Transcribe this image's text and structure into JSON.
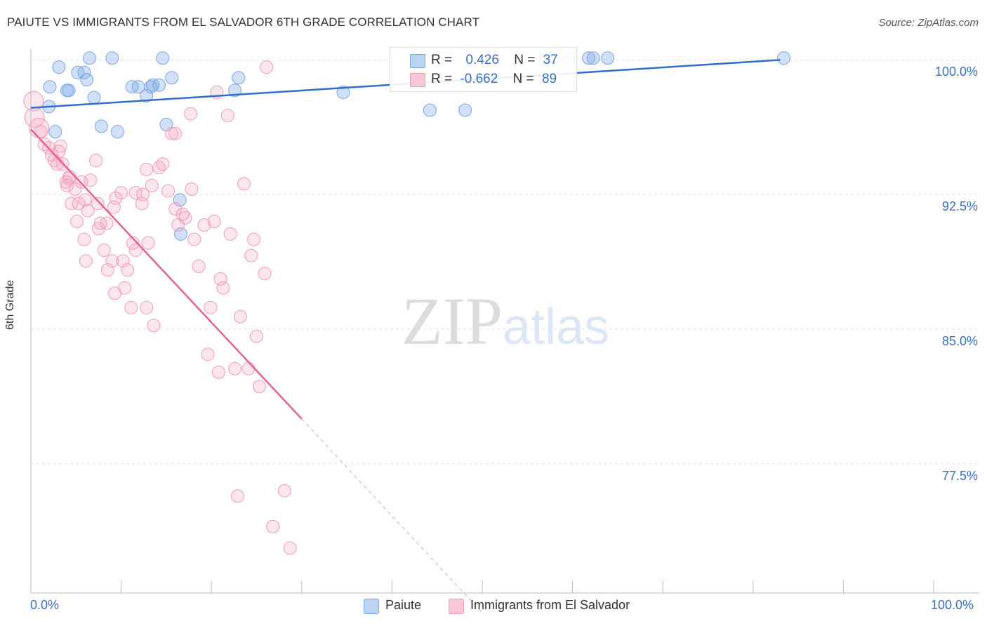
{
  "title": "PAIUTE VS IMMIGRANTS FROM EL SALVADOR 6TH GRADE CORRELATION CHART",
  "source": "Source: ZipAtlas.com",
  "colors": {
    "blue": "#7aa6e6",
    "blue_line": "#2f6ec9",
    "pink": "#f49ab8",
    "pink_line": "#e5628f",
    "accent_text": "#3a6fc4"
  },
  "legend": {
    "r_label": "R =",
    "n_label": "N =",
    "series1": {
      "r": "0.426",
      "n": "37"
    },
    "series2": {
      "r": "-0.662",
      "n": "89"
    }
  },
  "chart_data": {
    "type": "scatter",
    "title": "PAIUTE VS IMMIGRANTS FROM EL SALVADOR 6TH GRADE CORRELATION CHART",
    "xlabel": "",
    "ylabel": "6th Grade",
    "x_tick_labels": [
      "0.0%",
      "100.0%"
    ],
    "y_tick_labels": [
      "100.0%",
      "92.5%",
      "85.0%",
      "77.5%"
    ],
    "y_ticks": [
      100.0,
      92.5,
      85.0,
      77.5
    ],
    "xlim": [
      0,
      100
    ],
    "ylim": [
      70.3,
      100.6
    ],
    "grid": true,
    "legend_position": "top-center",
    "watermark": "ZIPatlas",
    "series": [
      {
        "name": "Paiute",
        "color": "#7aa6e6",
        "points": [
          [
            2.0,
            97.4
          ],
          [
            2.7,
            96.0
          ],
          [
            2.1,
            98.5
          ],
          [
            4.0,
            98.3
          ],
          [
            3.1,
            99.6
          ],
          [
            4.2,
            98.3
          ],
          [
            5.9,
            99.3
          ],
          [
            5.2,
            99.3
          ],
          [
            6.2,
            98.9
          ],
          [
            7.0,
            97.9
          ],
          [
            6.5,
            100.1
          ],
          [
            7.8,
            96.3
          ],
          [
            9.0,
            100.1
          ],
          [
            9.6,
            96.0
          ],
          [
            11.2,
            98.5
          ],
          [
            11.9,
            98.5
          ],
          [
            12.8,
            98.0
          ],
          [
            13.3,
            98.5
          ],
          [
            13.5,
            98.6
          ],
          [
            14.2,
            98.6
          ],
          [
            14.6,
            100.1
          ],
          [
            15.0,
            96.4
          ],
          [
            15.6,
            99.0
          ],
          [
            16.5,
            92.2
          ],
          [
            16.6,
            90.3
          ],
          [
            22.6,
            98.3
          ],
          [
            23.0,
            99.0
          ],
          [
            34.6,
            98.2
          ],
          [
            44.2,
            97.2
          ],
          [
            46.3,
            100.1
          ],
          [
            48.1,
            97.2
          ],
          [
            57.2,
            100.1
          ],
          [
            59.6,
            100.1
          ],
          [
            61.8,
            100.1
          ],
          [
            62.3,
            100.1
          ],
          [
            63.9,
            100.1
          ],
          [
            83.4,
            100.1
          ]
        ],
        "trend": [
          [
            0,
            97.33
          ],
          [
            83,
            100.0
          ]
        ]
      },
      {
        "name": "Immigrants from El Salvador",
        "color": "#f49ab8",
        "points": [
          [
            0.3,
            97.7
          ],
          [
            0.4,
            96.8
          ],
          [
            0.9,
            96.2
          ],
          [
            1.1,
            96.0
          ],
          [
            1.5,
            95.3
          ],
          [
            2.0,
            95.1
          ],
          [
            2.3,
            94.7
          ],
          [
            2.6,
            94.4
          ],
          [
            2.9,
            94.2
          ],
          [
            3.1,
            94.9
          ],
          [
            3.3,
            95.2
          ],
          [
            3.5,
            94.2
          ],
          [
            3.9,
            93.2
          ],
          [
            4.0,
            93.0
          ],
          [
            4.2,
            93.4
          ],
          [
            4.3,
            93.5
          ],
          [
            4.5,
            92.0
          ],
          [
            4.9,
            92.8
          ],
          [
            5.1,
            91.0
          ],
          [
            5.3,
            92.0
          ],
          [
            5.9,
            90.0
          ],
          [
            6.0,
            92.2
          ],
          [
            6.3,
            91.6
          ],
          [
            6.6,
            93.3
          ],
          [
            7.2,
            94.4
          ],
          [
            7.4,
            92.0
          ],
          [
            7.7,
            90.9
          ],
          [
            8.1,
            89.4
          ],
          [
            8.4,
            90.9
          ],
          [
            8.5,
            88.3
          ],
          [
            9.0,
            88.8
          ],
          [
            9.2,
            91.8
          ],
          [
            9.4,
            92.3
          ],
          [
            10.0,
            92.6
          ],
          [
            10.2,
            88.8
          ],
          [
            10.4,
            87.3
          ],
          [
            10.7,
            88.3
          ],
          [
            11.1,
            86.2
          ],
          [
            11.3,
            89.8
          ],
          [
            11.6,
            92.6
          ],
          [
            12.3,
            92.0
          ],
          [
            12.4,
            92.5
          ],
          [
            12.8,
            86.2
          ],
          [
            13.0,
            89.8
          ],
          [
            13.4,
            93.0
          ],
          [
            13.6,
            85.2
          ],
          [
            14.2,
            94.0
          ],
          [
            14.6,
            94.2
          ],
          [
            15.2,
            92.7
          ],
          [
            15.6,
            95.9
          ],
          [
            16.0,
            91.7
          ],
          [
            16.3,
            90.8
          ],
          [
            16.8,
            91.4
          ],
          [
            17.1,
            91.2
          ],
          [
            17.8,
            92.8
          ],
          [
            18.1,
            90.0
          ],
          [
            18.6,
            88.5
          ],
          [
            19.2,
            90.8
          ],
          [
            19.6,
            83.6
          ],
          [
            19.9,
            86.2
          ],
          [
            20.3,
            91.0
          ],
          [
            20.6,
            98.2
          ],
          [
            20.8,
            82.6
          ],
          [
            21.0,
            87.8
          ],
          [
            21.3,
            87.3
          ],
          [
            21.8,
            96.9
          ],
          [
            22.1,
            90.3
          ],
          [
            22.6,
            82.8
          ],
          [
            22.9,
            75.7
          ],
          [
            23.2,
            85.7
          ],
          [
            23.6,
            93.1
          ],
          [
            24.1,
            82.8
          ],
          [
            24.4,
            89.1
          ],
          [
            24.7,
            90.0
          ],
          [
            25.0,
            84.6
          ],
          [
            25.3,
            81.8
          ],
          [
            25.9,
            88.1
          ],
          [
            26.1,
            99.6
          ],
          [
            26.8,
            74.0
          ],
          [
            28.1,
            76.0
          ],
          [
            28.7,
            72.8
          ],
          [
            16.0,
            95.9
          ],
          [
            12.8,
            93.9
          ],
          [
            17.7,
            97.0
          ],
          [
            6.1,
            88.8
          ],
          [
            9.3,
            87.0
          ],
          [
            11.6,
            89.4
          ],
          [
            5.6,
            93.2
          ],
          [
            7.5,
            90.6
          ]
        ],
        "trend": [
          [
            0,
            96.13
          ],
          [
            30,
            80.0
          ]
        ],
        "trend_extension": [
          [
            30,
            80.0
          ],
          [
            50,
            69.2
          ]
        ]
      }
    ]
  }
}
